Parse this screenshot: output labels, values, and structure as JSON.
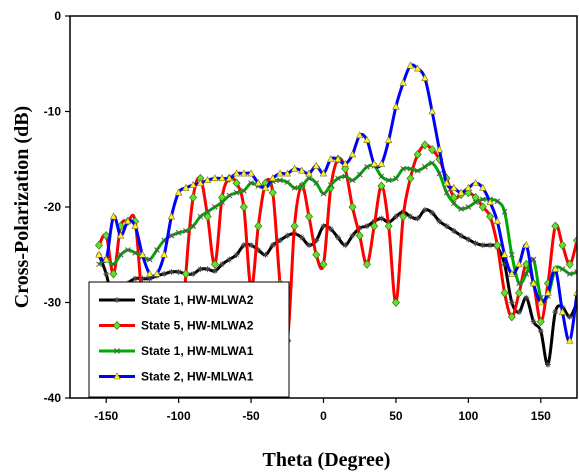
{
  "chart_data": {
    "type": "line",
    "xlabel": "Theta (Degree)",
    "ylabel": "Cross-Polarization (dB)",
    "xlim": [
      -175,
      175
    ],
    "ylim": [
      -40,
      0
    ],
    "xticks": [
      -150,
      -100,
      -50,
      0,
      50,
      100,
      150
    ],
    "yticks": [
      0,
      -10,
      -20,
      -30,
      -40
    ],
    "grid": false,
    "legend_position": "bottom-left",
    "series": [
      {
        "name": "State 1, HW-MLWA2",
        "color": "#000000",
        "marker": "star",
        "x": [
          -155,
          -150,
          -145,
          -140,
          -135,
          -130,
          -125,
          -120,
          -115,
          -110,
          -105,
          -100,
          -95,
          -90,
          -85,
          -80,
          -75,
          -70,
          -65,
          -60,
          -55,
          -50,
          -45,
          -40,
          -35,
          -30,
          -25,
          -20,
          -15,
          -10,
          -5,
          0,
          5,
          10,
          15,
          20,
          25,
          30,
          35,
          40,
          45,
          50,
          55,
          60,
          65,
          70,
          75,
          80,
          85,
          90,
          95,
          100,
          105,
          110,
          115,
          120,
          125,
          130,
          135,
          140,
          145,
          150,
          155,
          160,
          165,
          170,
          175
        ],
        "y": [
          -25,
          -27,
          -30,
          -29,
          -28,
          -27.5,
          -27.5,
          -27.5,
          -27.2,
          -27,
          -26.8,
          -26.8,
          -27,
          -27,
          -26.5,
          -26.5,
          -26.7,
          -26,
          -25.5,
          -25,
          -24,
          -24,
          -24.5,
          -25,
          -24,
          -23.5,
          -23,
          -22.8,
          -23.2,
          -24,
          -23.5,
          -22,
          -22.3,
          -23.2,
          -24,
          -23,
          -22.2,
          -22,
          -21.5,
          -21.2,
          -21.6,
          -21,
          -20.5,
          -21,
          -21.2,
          -20.3,
          -20.6,
          -21.5,
          -22,
          -22.5,
          -23,
          -23.4,
          -23.8,
          -24,
          -24,
          -24.2,
          -26,
          -30,
          -31,
          -29.5,
          -32,
          -33,
          -36.5,
          -31,
          -30.5,
          -31.5,
          -30
        ]
      },
      {
        "name": "State 5, HW-MLWA2",
        "color": "#ff0000",
        "marker": "diamond",
        "x": [
          -155,
          -150,
          -145,
          -140,
          -135,
          -130,
          -125,
          -120,
          -115,
          -110,
          -105,
          -100,
          -95,
          -90,
          -85,
          -80,
          -75,
          -70,
          -65,
          -60,
          -55,
          -50,
          -45,
          -40,
          -35,
          -30,
          -25,
          -20,
          -15,
          -10,
          -5,
          0,
          5,
          10,
          15,
          20,
          25,
          30,
          35,
          40,
          45,
          50,
          55,
          60,
          65,
          70,
          75,
          80,
          85,
          90,
          95,
          100,
          105,
          110,
          115,
          120,
          125,
          130,
          135,
          140,
          145,
          150,
          155,
          160,
          165,
          170,
          175
        ],
        "y": [
          -24,
          -23,
          -27,
          -22,
          -21.5,
          -21.5,
          -30,
          -34,
          -34,
          -36,
          -37,
          -40,
          -27,
          -19,
          -17,
          -21,
          -26,
          -19,
          -17,
          -17.5,
          -20,
          -28.5,
          -22,
          -17.5,
          -18.5,
          -28,
          -34,
          -22,
          -17.8,
          -21,
          -25,
          -26,
          -18,
          -15,
          -16,
          -20,
          -23,
          -26,
          -22,
          -17.8,
          -22,
          -30,
          -21,
          -17,
          -14.5,
          -13.5,
          -14,
          -15,
          -17,
          -19,
          -18.7,
          -18.5,
          -19,
          -20,
          -21,
          -24,
          -29,
          -31.5,
          -29,
          -26,
          -28,
          -32,
          -28,
          -22,
          -24,
          -26,
          -23.5
        ]
      },
      {
        "name": "State 1, HW-MLWA1",
        "color": "#00aa00",
        "marker": "x",
        "x": [
          -155,
          -150,
          -145,
          -140,
          -135,
          -130,
          -125,
          -120,
          -115,
          -110,
          -105,
          -100,
          -95,
          -90,
          -85,
          -80,
          -75,
          -70,
          -65,
          -60,
          -55,
          -50,
          -45,
          -40,
          -35,
          -30,
          -25,
          -20,
          -15,
          -10,
          -5,
          0,
          5,
          10,
          15,
          20,
          25,
          30,
          35,
          40,
          45,
          50,
          55,
          60,
          65,
          70,
          75,
          80,
          85,
          90,
          95,
          100,
          105,
          110,
          115,
          120,
          125,
          130,
          135,
          140,
          145,
          150,
          155,
          160,
          165,
          170,
          175
        ],
        "y": [
          -26,
          -25.5,
          -26,
          -25,
          -24.5,
          -24.8,
          -25.2,
          -25.5,
          -24.5,
          -23.5,
          -23,
          -22.7,
          -22.5,
          -22,
          -21,
          -20.5,
          -20,
          -19.5,
          -18.8,
          -18.5,
          -18.3,
          -17.5,
          -17.8,
          -18,
          -17.3,
          -17.2,
          -17.4,
          -18,
          -17.8,
          -17,
          -17.5,
          -18.6,
          -17.7,
          -17,
          -16.8,
          -17.2,
          -16.6,
          -15.8,
          -15.7,
          -16.8,
          -17.2,
          -17,
          -16,
          -16,
          -16.2,
          -15.8,
          -15.4,
          -16.5,
          -18.5,
          -19.6,
          -20.2,
          -20,
          -19.5,
          -19.2,
          -19.2,
          -19.4,
          -20.5,
          -25,
          -28,
          -27,
          -25.5,
          -29.5,
          -29.3,
          -26.5,
          -26.5,
          -27,
          -26.8
        ]
      },
      {
        "name": "State 2, HW-MLWA1",
        "color": "#0000ff",
        "marker": "triangle",
        "x": [
          -155,
          -150,
          -145,
          -140,
          -135,
          -130,
          -125,
          -120,
          -115,
          -110,
          -105,
          -100,
          -95,
          -90,
          -85,
          -80,
          -75,
          -70,
          -65,
          -60,
          -55,
          -50,
          -45,
          -40,
          -35,
          -30,
          -25,
          -20,
          -15,
          -10,
          -5,
          0,
          5,
          10,
          15,
          20,
          25,
          30,
          35,
          40,
          45,
          50,
          55,
          60,
          65,
          70,
          75,
          80,
          85,
          90,
          95,
          100,
          105,
          110,
          115,
          120,
          125,
          130,
          135,
          140,
          145,
          150,
          155,
          160,
          165,
          170,
          175
        ],
        "y": [
          -25,
          -25.5,
          -21,
          -23,
          -21.5,
          -22,
          -25,
          -27,
          -27,
          -25,
          -21,
          -18.5,
          -18,
          -17.7,
          -17.5,
          -17.2,
          -17,
          -17,
          -17,
          -16.5,
          -16.5,
          -16.5,
          -17.5,
          -18,
          -17,
          -16.5,
          -16.5,
          -16,
          -16.2,
          -16.5,
          -15.7,
          -16.5,
          -15,
          -15,
          -15.5,
          -14.5,
          -12.5,
          -13,
          -15.5,
          -15.5,
          -13,
          -9.5,
          -7,
          -5.2,
          -5.5,
          -6.5,
          -10,
          -14,
          -17.5,
          -18,
          -18.5,
          -18,
          -17.5,
          -18,
          -19.5,
          -21.5,
          -25,
          -27,
          -26,
          -24,
          -28,
          -30,
          -29,
          -26.5,
          -31,
          -34,
          -29
        ]
      }
    ]
  }
}
